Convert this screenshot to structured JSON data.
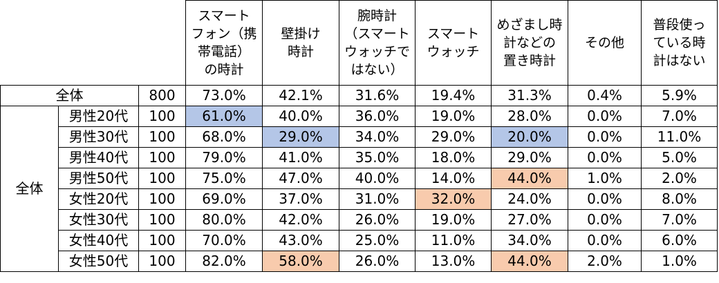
{
  "colors": {
    "highlight_low": "#b4c6e7",
    "highlight_high": "#f8cbad"
  },
  "headers": [
    "スマート\nフォン（携\n帯電話）\nの時計",
    "壁掛け\n時計",
    "腕時計\n（スマート\nウォッチで\nはない）",
    "スマート\nウォッチ",
    "めざまし時\n計などの\n置き時計",
    "その他",
    "普段使っ\nている時\n計はない"
  ],
  "total": {
    "label": "全体",
    "n": "800",
    "values": [
      "73.0%",
      "42.1%",
      "31.6%",
      "19.4%",
      "31.3%",
      "0.4%",
      "5.9%"
    ]
  },
  "group_label": "全体",
  "rows": [
    {
      "label": "男性20代",
      "n": "100",
      "values": [
        "61.0%",
        "40.0%",
        "36.0%",
        "19.0%",
        "28.0%",
        "0.0%",
        "7.0%"
      ]
    },
    {
      "label": "男性30代",
      "n": "100",
      "values": [
        "68.0%",
        "29.0%",
        "34.0%",
        "29.0%",
        "20.0%",
        "0.0%",
        "11.0%"
      ]
    },
    {
      "label": "男性40代",
      "n": "100",
      "values": [
        "79.0%",
        "41.0%",
        "35.0%",
        "18.0%",
        "29.0%",
        "0.0%",
        "5.0%"
      ]
    },
    {
      "label": "男性50代",
      "n": "100",
      "values": [
        "75.0%",
        "47.0%",
        "40.0%",
        "14.0%",
        "44.0%",
        "1.0%",
        "2.0%"
      ]
    },
    {
      "label": "女性20代",
      "n": "100",
      "values": [
        "69.0%",
        "37.0%",
        "31.0%",
        "32.0%",
        "24.0%",
        "0.0%",
        "8.0%"
      ]
    },
    {
      "label": "女性30代",
      "n": "100",
      "values": [
        "80.0%",
        "42.0%",
        "26.0%",
        "19.0%",
        "27.0%",
        "0.0%",
        "7.0%"
      ]
    },
    {
      "label": "女性40代",
      "n": "100",
      "values": [
        "70.0%",
        "43.0%",
        "25.0%",
        "11.0%",
        "34.0%",
        "0.0%",
        "6.0%"
      ]
    },
    {
      "label": "女性50代",
      "n": "100",
      "values": [
        "82.0%",
        "58.0%",
        "26.0%",
        "13.0%",
        "44.0%",
        "2.0%",
        "1.0%"
      ]
    }
  ]
}
